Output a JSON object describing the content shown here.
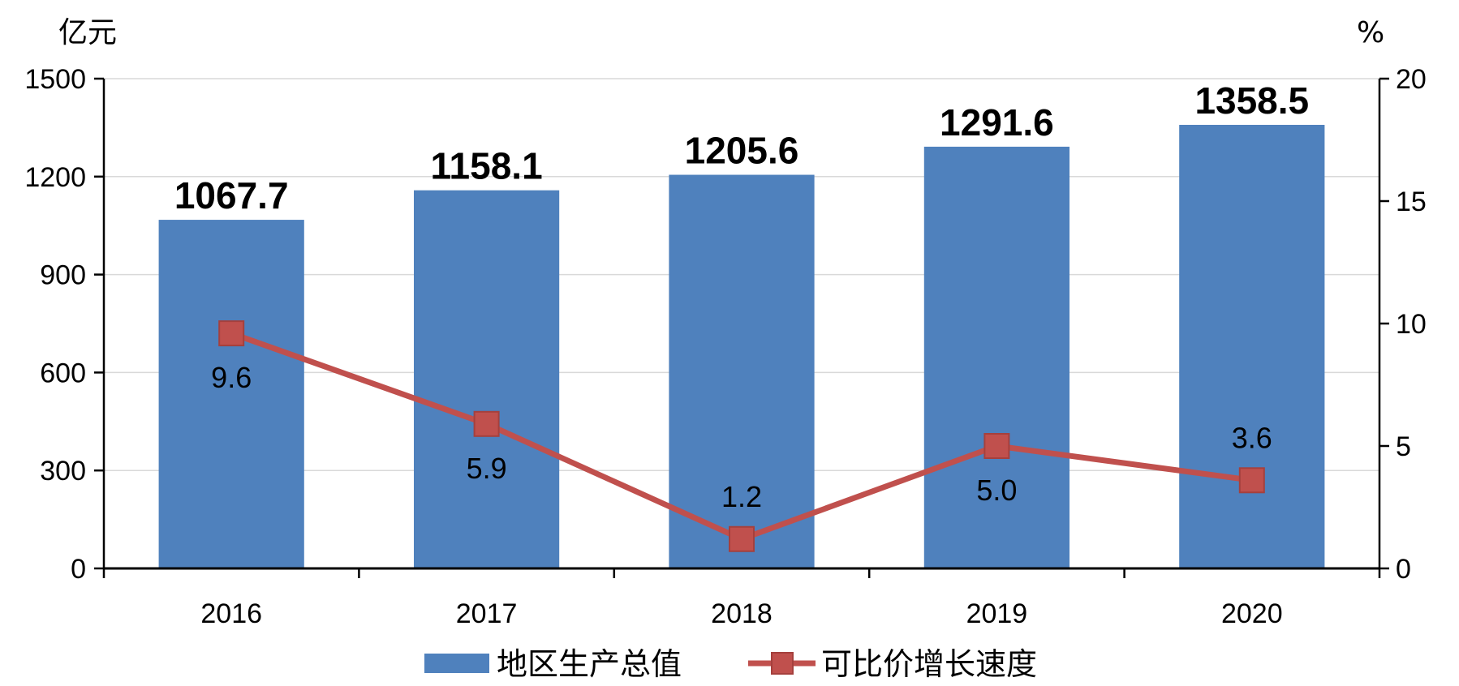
{
  "chart_data": {
    "type": "bar",
    "categories": [
      "2016",
      "2017",
      "2018",
      "2019",
      "2020"
    ],
    "series": [
      {
        "name": "地区生产总值",
        "type": "bar",
        "axis": "left",
        "values": [
          1067.7,
          1158.1,
          1205.6,
          1291.6,
          1358.5
        ],
        "labels": [
          "1067.7",
          "1158.1",
          "1205.6",
          "1291.6",
          "1358.5"
        ],
        "color": "#4F81BD"
      },
      {
        "name": "可比价增长速度",
        "type": "line",
        "axis": "right",
        "values": [
          9.6,
          5.9,
          1.2,
          5.0,
          3.6
        ],
        "labels": [
          "9.6",
          "5.9",
          "1.2",
          "5.0",
          "3.6"
        ],
        "color": "#C0504D",
        "marker": "square"
      }
    ],
    "y_left": {
      "unit": "亿元",
      "ylim": [
        0,
        1500
      ],
      "ticks": [
        "0",
        "300",
        "600",
        "900",
        "1200",
        "1500"
      ]
    },
    "y_right": {
      "unit": "%",
      "ylim": [
        0,
        20
      ],
      "ticks": [
        "0",
        "5",
        "10",
        "15",
        "20"
      ]
    },
    "grid": true,
    "legend_position": "bottom"
  }
}
